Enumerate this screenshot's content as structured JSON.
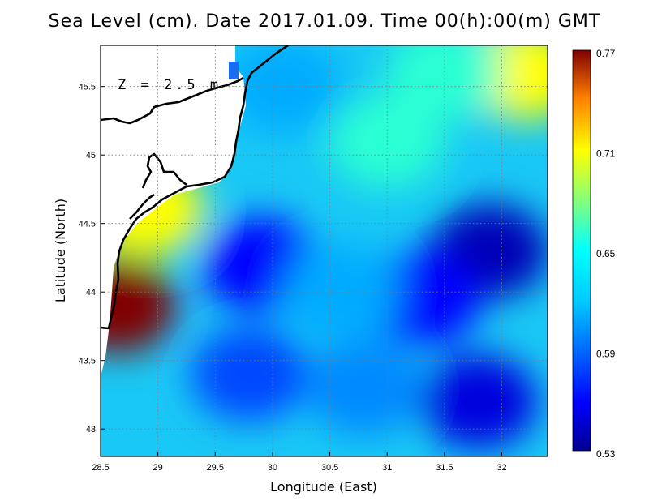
{
  "chart_data": {
    "type": "heatmap",
    "title": "Sea Level (cm). Date 2017.01.09. Time 00(h):00(m) GMT",
    "xlabel": "Longitude (East)",
    "ylabel": "Latitude (North)",
    "annotation": "Z = 2.5 m",
    "xlim": [
      28.5,
      32.4
    ],
    "ylim": [
      42.8,
      45.8
    ],
    "x_ticks": [
      28.5,
      29,
      29.5,
      30,
      30.5,
      31,
      31.5,
      32
    ],
    "y_ticks": [
      43,
      43.5,
      44,
      44.5,
      45,
      45.5
    ],
    "grid": true,
    "colorbar": {
      "min": 0.53,
      "max": 0.77,
      "ticks": [
        0.77,
        0.71,
        0.65,
        0.59,
        0.53
      ],
      "colormap": "jet"
    },
    "field_features": [
      {
        "lon": 28.65,
        "lat": 43.9,
        "value": 0.77
      },
      {
        "lon": 28.9,
        "lat": 44.6,
        "value": 0.71
      },
      {
        "lon": 32.2,
        "lat": 45.6,
        "value": 0.71
      },
      {
        "lon": 31.0,
        "lat": 45.1,
        "value": 0.66
      },
      {
        "lon": 31.9,
        "lat": 44.3,
        "value": 0.54
      },
      {
        "lon": 31.3,
        "lat": 43.95,
        "value": 0.56
      },
      {
        "lon": 29.9,
        "lat": 44.2,
        "value": 0.56
      },
      {
        "lon": 29.8,
        "lat": 43.4,
        "value": 0.58
      },
      {
        "lon": 31.8,
        "lat": 43.2,
        "value": 0.55
      },
      {
        "lon": 30.6,
        "lat": 44.0,
        "value": 0.61
      },
      {
        "lon": 30.1,
        "lat": 45.5,
        "value": 0.61
      },
      {
        "lon": 30.8,
        "lat": 43.3,
        "value": 0.6
      },
      {
        "lon": 31.5,
        "lat": 45.6,
        "value": 0.66
      }
    ]
  },
  "labels": {
    "title": "Sea Level (cm). Date 2017.01.09. Time 00(h):00(m) GMT",
    "x_axis": "Longitude (East)",
    "y_axis": "Latitude (North)",
    "depth": "Z = 2.5 m",
    "x_ticks": [
      "28.5",
      "29",
      "29.5",
      "30",
      "30.5",
      "31",
      "31.5",
      "32"
    ],
    "y_ticks": [
      "43",
      "43.5",
      "44",
      "44.5",
      "45",
      "45.5"
    ],
    "cb_ticks": [
      "0.77",
      "0.71",
      "0.65",
      "0.59",
      "0.53"
    ]
  }
}
